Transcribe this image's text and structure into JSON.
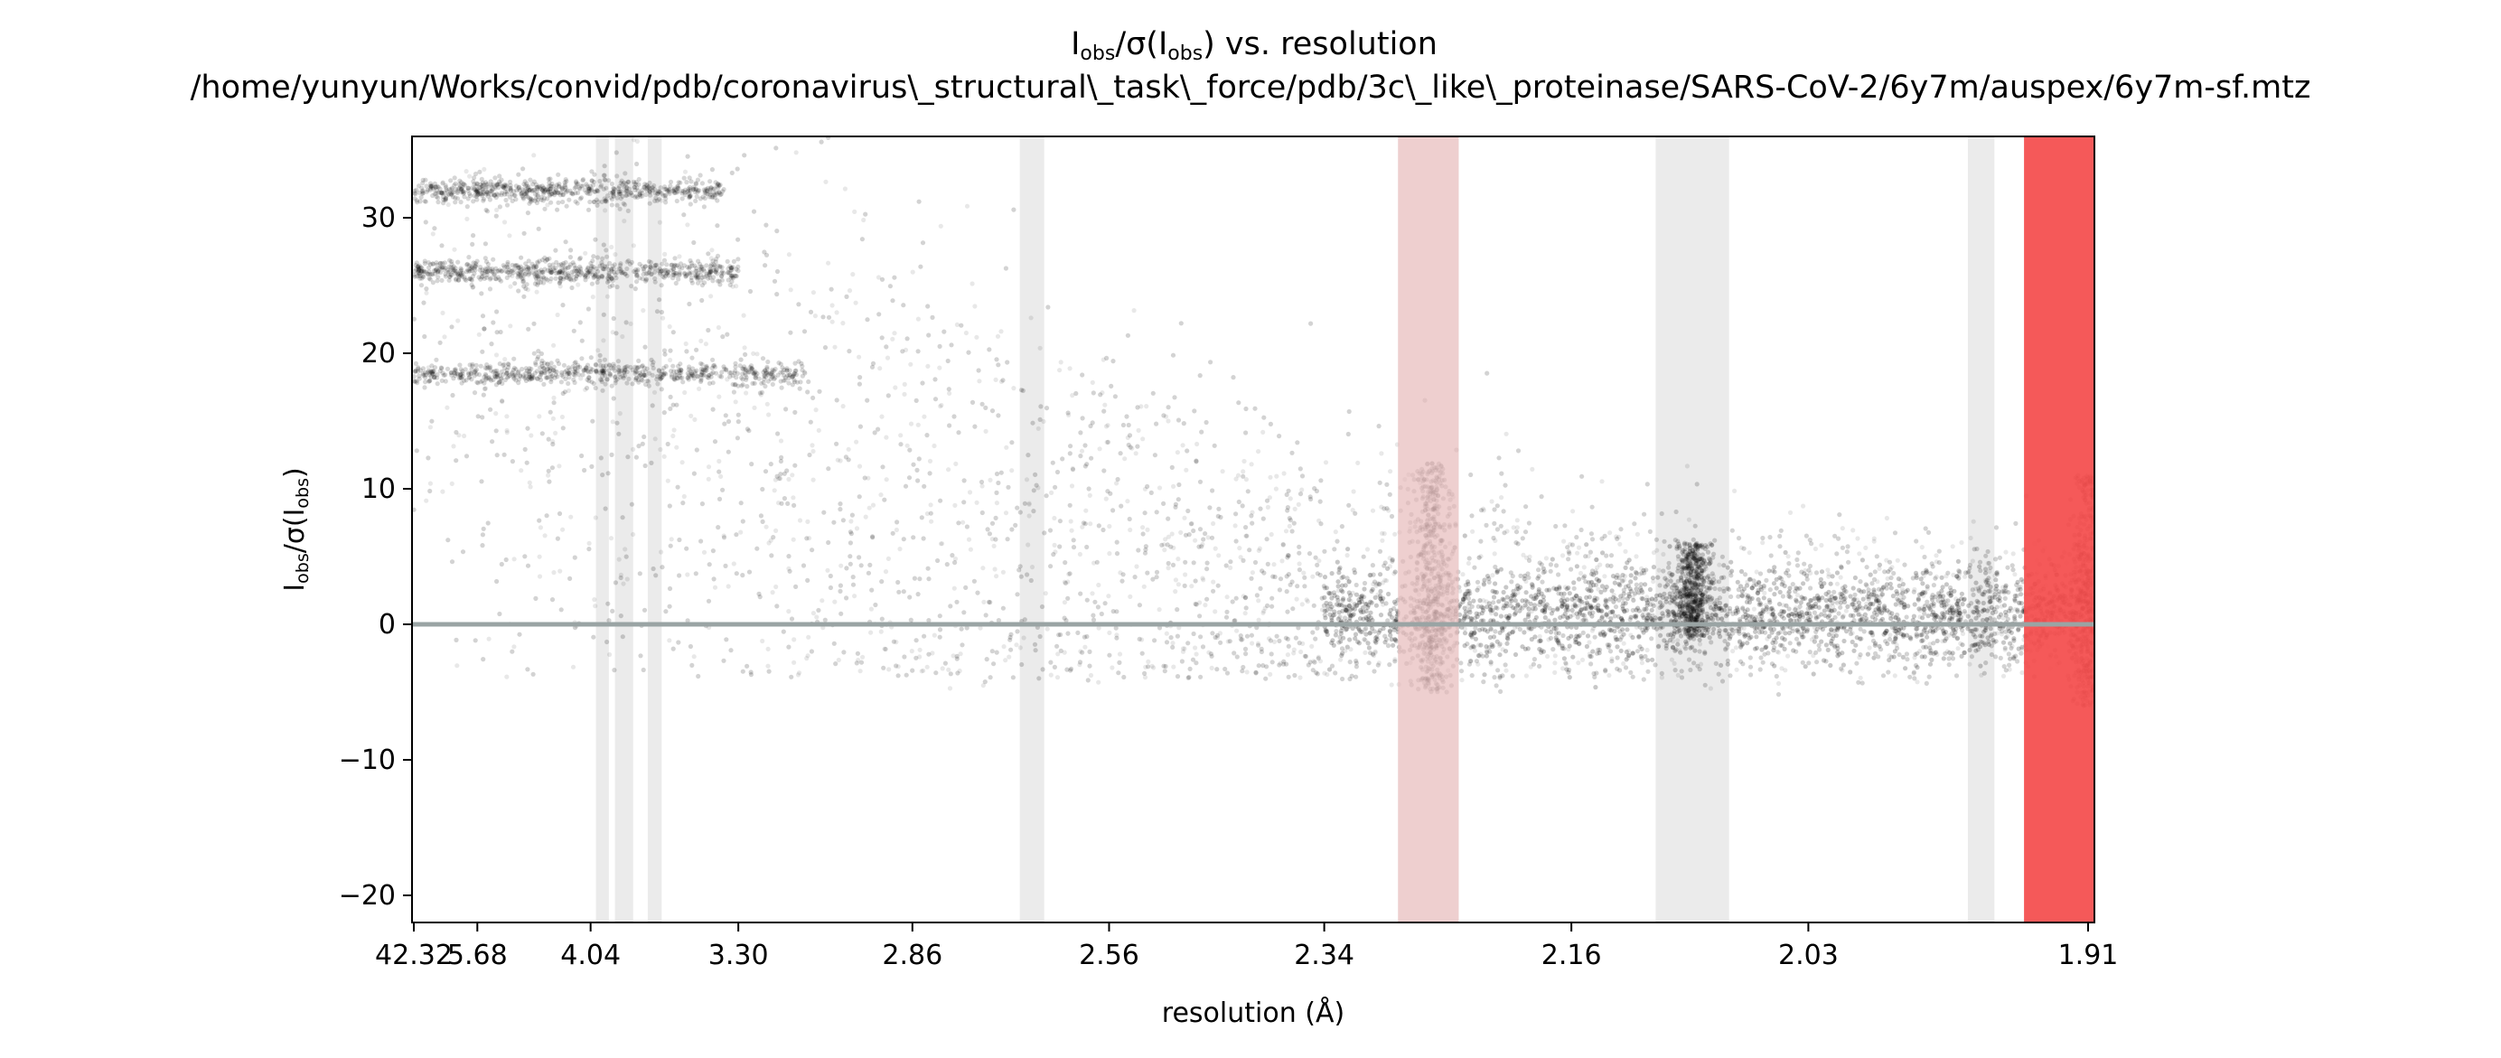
{
  "chart_data": {
    "type": "scatter",
    "title": "I_obs/σ(I_obs) vs. resolution",
    "title_parts": {
      "main": "I",
      "sub1": "obs",
      "mid": "/σ(I",
      "sub2": "obs",
      "end": ") vs. resolution"
    },
    "subtitle": "/home/yunyun/Works/convid/pdb/coronavirus\\_structural\\_task\\_force/pdb/3c\\_like\\_proteinase/SARS-CoV-2/6y7m/auspex/6y7m-sf.mtz",
    "xlabel": "resolution (Å)",
    "ylabel": "I_obs/σ(I_obs)",
    "ylabel_parts": {
      "main": "I",
      "sub1": "obs",
      "mid": "/σ(I",
      "sub2": "obs",
      "end": ")"
    },
    "x_axis": "resolution (Å), plotted on a 1/d³ scale (ticks at equal spacing)",
    "xlim": [
      42.32,
      1.89
    ],
    "ylim": [
      -22,
      36
    ],
    "x_ticks": [
      "42.32",
      "5.68",
      "4.04",
      "3.30",
      "2.86",
      "2.56",
      "2.34",
      "2.16",
      "2.03",
      "1.91"
    ],
    "y_ticks": [
      -20,
      -10,
      0,
      10,
      20,
      30
    ],
    "y_tick_labels": [
      "−20",
      "−10",
      "0",
      "10",
      "20",
      "30"
    ],
    "zero_line": 0,
    "grid": false,
    "legend": "none",
    "point_color": "#000000",
    "ice_rings_gray": [
      {
        "from": 4.0,
        "to": 3.91
      },
      {
        "from": 3.87,
        "to": 3.76
      },
      {
        "from": 3.68,
        "to": 3.61
      },
      {
        "from": 2.68,
        "to": 2.645
      },
      {
        "from": 2.28,
        "to": 2.235
      },
      {
        "from": 2.11,
        "to": 2.07
      },
      {
        "from": 1.958,
        "to": 1.947
      }
    ],
    "ice_rings_red": [
      {
        "from": 2.28,
        "to": 2.235,
        "intensity": "light",
        "color": "#efc4c4"
      },
      {
        "from": 1.935,
        "to": 1.89,
        "intensity": "strong",
        "color": "#f44b4b"
      }
    ],
    "scatter_bands": [
      {
        "y": 32.0,
        "from": 42.32,
        "to": 3.35
      },
      {
        "y": 26.0,
        "from": 42.32,
        "to": 3.3
      },
      {
        "y": 18.5,
        "from": 42.32,
        "to": 3.1
      }
    ],
    "scatter_trend": [
      {
        "x": 42.32,
        "median": 22,
        "spread": 12
      },
      {
        "x": 4.04,
        "median": 18,
        "spread": 13
      },
      {
        "x": 3.3,
        "median": 14,
        "spread": 13
      },
      {
        "x": 2.86,
        "median": 9,
        "spread": 11
      },
      {
        "x": 2.56,
        "median": 5,
        "spread": 8
      },
      {
        "x": 2.34,
        "median": 2.5,
        "spread": 6
      },
      {
        "x": 2.16,
        "median": 1.5,
        "spread": 4
      },
      {
        "x": 2.03,
        "median": 1.0,
        "spread": 3
      },
      {
        "x": 1.91,
        "median": 0.8,
        "spread": 2.5
      }
    ],
    "anomaly_spikes": [
      {
        "x": 2.255,
        "peak": 12,
        "dip": -5
      },
      {
        "x": 2.09,
        "peak": 6,
        "dip": -1
      },
      {
        "x": 1.91,
        "peak": 11,
        "dip": -6
      }
    ]
  }
}
